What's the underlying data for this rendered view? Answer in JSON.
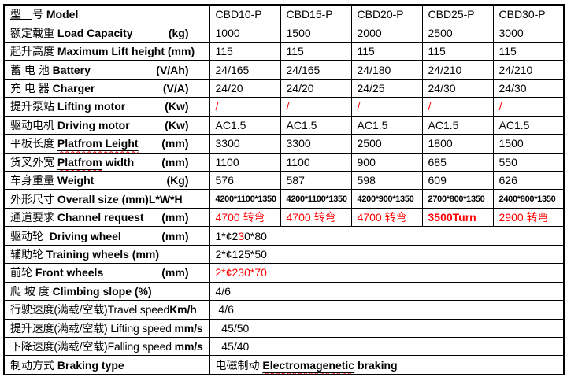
{
  "colors": {
    "accent_red": "#ff0000",
    "border": "#000000",
    "text": "#000000",
    "background": "#ffffff"
  },
  "header": {
    "cn_underlined": "型　",
    "cn_rest": "号 ",
    "en": "Model",
    "models": [
      "CBD10-P",
      "CBD15-P",
      "CBD20-P",
      "CBD25-P",
      "CBD30-P"
    ]
  },
  "rows": {
    "load_capacity": {
      "cn": "额定载重 ",
      "en": "Load Capacity",
      "unit": "(kg)",
      "values": [
        "1000",
        "1500",
        "2000",
        "2500",
        "3000"
      ]
    },
    "lift_height": {
      "cn": "起升高度 ",
      "en": "Maximum Lift height (mm)",
      "values": [
        "115",
        "115",
        "115",
        "115",
        "115"
      ]
    },
    "battery": {
      "cn": "蓄 电 池 ",
      "en": "Battery",
      "unit": "(V/Ah)",
      "values": [
        "24/165",
        "24/165",
        "24/180",
        "24/210",
        "24/210"
      ]
    },
    "charger": {
      "cn": "充 电 器 ",
      "en": "Charger",
      "unit": "(V/A)",
      "values": [
        "24/20",
        "24/20",
        "24/25",
        "24/30",
        "24/30"
      ]
    },
    "lifting_motor": {
      "cn": "提升泵站 ",
      "en": "Lifting motor",
      "unit": "(Kw)",
      "values": [
        "/",
        "/",
        "/",
        "/",
        "/"
      ]
    },
    "driving_motor": {
      "cn": "驱动电机 ",
      "en": "Driving motor",
      "unit": "(Kw)",
      "values": [
        "AC1.5",
        "AC1.5",
        "AC1.5",
        "AC1.5",
        "AC1.5"
      ]
    },
    "platform_length": {
      "cn": "平板长度 ",
      "en_misspelled": "Platfrom Leight",
      "unit": "(mm)",
      "values": [
        "3300",
        "3300",
        "2500",
        "1800",
        "1500"
      ]
    },
    "platform_width": {
      "cn": "货叉外宽 ",
      "en_misspelled": "Platfrom",
      "en_rest": " width",
      "unit": "(mm)",
      "values": [
        "1100",
        "1100",
        "900",
        "685",
        "550"
      ]
    },
    "weight": {
      "cn": "车身重量 ",
      "en": "Weight",
      "unit": "(Kg)",
      "values": [
        "576",
        "587",
        "598",
        "609",
        "626"
      ]
    },
    "overall_size": {
      "cn": "外形尺寸 ",
      "en": "Overall size (mm)L*W*H",
      "values": [
        "4200*1100*1350",
        "4200*1100*1350",
        "4200*900*1350",
        "2700*800*1350",
        "2400*800*1350"
      ]
    },
    "channel_request": {
      "cn": "通道要求 ",
      "en": "Channel request",
      "unit": "(mm)",
      "values": [
        "4700 转弯",
        "4700 转弯",
        "4700 转弯",
        "3500Turn",
        "2900 转弯"
      ]
    },
    "driving_wheel": {
      "cn": "驱动轮  ",
      "en": "Driving wheel",
      "unit": "(mm)",
      "value_pre": "1*¢2",
      "value_red": "3",
      "value_post": "0*80"
    },
    "training_wheels": {
      "cn": "辅助轮 ",
      "en": "Training wheels (mm)",
      "value": "2*¢125*50"
    },
    "front_wheels": {
      "cn": "前轮 ",
      "en": "Front wheels",
      "unit": "(mm)",
      "value": "2*¢230*70"
    },
    "climbing_slope": {
      "cn": "爬 坡 度 ",
      "en": "Climbing slope (%)",
      "value": "4/6"
    },
    "travel_speed": {
      "cn": "行驶速度(满载/空载)",
      "en": "Travel speed",
      "unit": "Km/h",
      "value": " 4/6"
    },
    "lifting_speed": {
      "cn": "提升速度(满载/空载) ",
      "en": "Lifting speed ",
      "unit": "mm/s",
      "value": "  45/50"
    },
    "falling_speed": {
      "cn": "下降速度(满载/空载)",
      "en": "Falling speed ",
      "unit": "mm/s",
      "value": "  45/40"
    },
    "braking": {
      "cn": "制动方式 ",
      "en": "Braking type",
      "value_cn": "电磁制动 ",
      "value_en_misspelled": "Electromagenetic",
      "value_en_rest": " braking"
    }
  }
}
